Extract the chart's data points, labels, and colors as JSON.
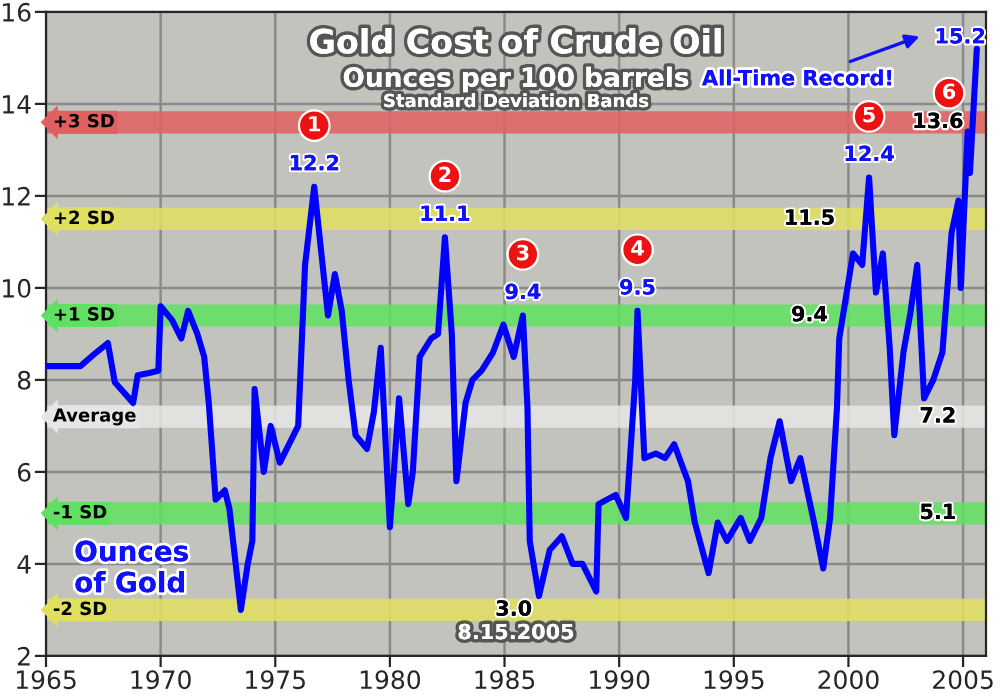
{
  "chart_data": {
    "type": "line",
    "title": "Gold Cost of Crude Oil",
    "subtitle": "Ounces per 100 barrels",
    "x": [
      1965,
      1966.5,
      1967.2,
      1967.7,
      1968.0,
      1968.8,
      1969.0,
      1969.5,
      1969.9,
      1970.0,
      1970.5,
      1970.9,
      1971.2,
      1971.6,
      1971.9,
      1972.1,
      1972.4,
      1972.8,
      1973.0,
      1973.5,
      1973.8,
      1974.0,
      1974.1,
      1974.5,
      1974.8,
      1975.2,
      1975.5,
      1976.0,
      1976.3,
      1976.7,
      1977.0,
      1977.3,
      1977.6,
      1977.9,
      1978.2,
      1978.5,
      1979.0,
      1979.3,
      1979.6,
      1980.0,
      1980.4,
      1980.8,
      1981.0,
      1981.3,
      1981.8,
      1982.1,
      1982.4,
      1982.7,
      1982.9,
      1983.3,
      1983.6,
      1984.0,
      1984.5,
      1984.95,
      1985.4,
      1985.8,
      1986.0,
      1986.1,
      1986.5,
      1986.97,
      1987.5,
      1987.97,
      1988.4,
      1989.0,
      1989.1,
      1989.85,
      1990.3,
      1990.7,
      1990.8,
      1991.1,
      1991.6,
      1992.0,
      1992.4,
      1993.0,
      1993.3,
      1993.9,
      1994.3,
      1994.7,
      1995.3,
      1995.7,
      1996.2,
      1996.6,
      1997.0,
      1997.5,
      1997.9,
      1998.5,
      1998.9,
      1999.2,
      1999.5,
      1999.6,
      2000.2,
      2000.6,
      2000.9,
      2001.2,
      2001.5,
      2001.8,
      2002.0,
      2002.4,
      2002.7,
      2003.0,
      2003.3,
      2003.7,
      2004.1,
      2004.5,
      2004.8,
      2004.9,
      2005.2,
      2005.3,
      2005.6
    ],
    "series": [
      {
        "color": "#0000ff",
        "values": [
          8.3,
          8.3,
          8.6,
          8.8,
          7.95,
          7.5,
          8.1,
          8.15,
          8.2,
          9.6,
          9.3,
          8.9,
          9.5,
          9.0,
          8.5,
          7.5,
          5.4,
          5.6,
          5.2,
          3.0,
          4.0,
          4.5,
          7.8,
          6.0,
          7.0,
          6.2,
          6.5,
          7.0,
          10.5,
          12.2,
          10.8,
          9.4,
          10.3,
          9.5,
          8.0,
          6.8,
          6.5,
          7.3,
          8.7,
          4.8,
          7.6,
          5.3,
          6.0,
          8.5,
          8.9,
          9.0,
          11.1,
          9.0,
          5.8,
          7.5,
          8.0,
          8.2,
          8.6,
          9.2,
          8.5,
          9.4,
          7.4,
          4.5,
          3.3,
          4.3,
          4.6,
          4.0,
          4.0,
          3.4,
          5.3,
          5.5,
          5.0,
          8.0,
          9.5,
          6.3,
          6.4,
          6.3,
          6.6,
          5.8,
          4.9,
          3.8,
          4.9,
          4.5,
          5.0,
          4.5,
          5.0,
          6.3,
          7.1,
          5.8,
          6.3,
          4.9,
          3.9,
          5.0,
          7.4,
          8.9,
          10.75,
          10.5,
          12.4,
          9.9,
          10.75,
          8.7,
          6.8,
          8.6,
          9.45,
          10.5,
          7.6,
          8.0,
          8.6,
          11.2,
          11.9,
          10.0,
          13.4,
          12.5,
          15.2
        ]
      }
    ],
    "xlim": [
      1965,
      2006
    ],
    "ylim": [
      2,
      16
    ],
    "xticks": [
      1965,
      1970,
      1975,
      1980,
      1985,
      1990,
      1995,
      2000,
      2005
    ],
    "yticks": [
      2,
      4,
      6,
      8,
      10,
      12,
      14,
      16
    ],
    "grid": true,
    "line_style": "solid",
    "marker": "none",
    "ref_lines": [
      {
        "axis": "y",
        "value": 13.6,
        "label": "+3 SD",
        "color": "#e06060"
      },
      {
        "axis": "y",
        "value": 11.5,
        "label": "+2 SD",
        "color": "#e0e060"
      },
      {
        "axis": "y",
        "value": 9.4,
        "label": "+1 SD",
        "color": "#60e060"
      },
      {
        "axis": "y",
        "value": 7.2,
        "label": "Average",
        "color": "#e6e6e6"
      },
      {
        "axis": "y",
        "value": 5.1,
        "label": "-1 SD",
        "color": "#60e060"
      },
      {
        "axis": "y",
        "value": 3.0,
        "label": "-2 SD",
        "color": "#e0e060"
      }
    ],
    "annotations": [
      "Standard Deviation Bands",
      "Ounces\nof Gold",
      "8.15.2005",
      "All-Time Record!",
      {
        "text": "12.2",
        "x": 1976.7,
        "y": 12.2
      },
      {
        "text": "1",
        "x": 1976.7,
        "y": 12.2
      },
      {
        "text": "11.1",
        "x": 1982.4,
        "y": 11.1
      },
      {
        "text": "2",
        "x": 1982.4,
        "y": 11.1
      },
      {
        "text": "9.4",
        "x": 1985.8,
        "y": 9.4
      },
      {
        "text": "3",
        "x": 1985.8,
        "y": 9.4
      },
      {
        "text": "9.5",
        "x": 1990.8,
        "y": 9.5
      },
      {
        "text": "4",
        "x": 1990.8,
        "y": 9.5
      },
      {
        "text": "12.4",
        "x": 2000.9,
        "y": 12.4
      },
      {
        "text": "5",
        "x": 2000.9,
        "y": 12.4
      },
      {
        "text": "15.2",
        "x": 2005.6,
        "y": 15.2
      },
      {
        "text": "6",
        "x": 2005.6,
        "y": 15.2
      },
      {
        "text": "13.6",
        "x": 2003.9,
        "y": 13.6
      },
      {
        "text": "11.5",
        "x": 1998.3,
        "y": 11.5
      },
      {
        "text": "9.4",
        "x": 1998.3,
        "y": 9.4
      },
      {
        "text": "7.2",
        "x": 2003.9,
        "y": 7.2
      },
      {
        "text": "5.1",
        "x": 2003.9,
        "y": 5.1
      },
      {
        "text": "3.0",
        "x": 1985.4,
        "y": 3.0
      }
    ]
  }
}
